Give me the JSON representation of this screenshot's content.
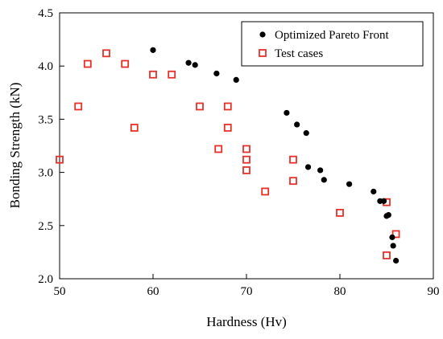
{
  "chart_data": {
    "type": "scatter",
    "xlabel": "Hardness (Hv)",
    "ylabel": "Bonding Strength (kN)",
    "xlim": [
      50,
      90
    ],
    "ylim": [
      2.0,
      4.5
    ],
    "x_ticks": [
      50,
      60,
      70,
      80,
      90
    ],
    "y_ticks": [
      2.0,
      2.5,
      3.0,
      3.5,
      4.0,
      4.5
    ],
    "x_tick_labels": [
      "50",
      "60",
      "70",
      "80",
      "90"
    ],
    "y_tick_labels": [
      "2.0",
      "2.5",
      "3.0",
      "3.5",
      "4.0",
      "4.5"
    ],
    "grid": false,
    "legend_position": "top-right",
    "series": [
      {
        "name": "Optimized Pareto Front",
        "marker": "filled-circle",
        "color": "#000000",
        "points": [
          [
            60.0,
            4.15
          ],
          [
            63.8,
            4.03
          ],
          [
            64.5,
            4.01
          ],
          [
            66.8,
            3.93
          ],
          [
            68.9,
            3.87
          ],
          [
            74.3,
            3.56
          ],
          [
            75.4,
            3.45
          ],
          [
            76.4,
            3.37
          ],
          [
            76.6,
            3.05
          ],
          [
            77.9,
            3.02
          ],
          [
            78.3,
            2.93
          ],
          [
            81.0,
            2.89
          ],
          [
            83.6,
            2.82
          ],
          [
            84.3,
            2.73
          ],
          [
            84.7,
            2.73
          ],
          [
            85.0,
            2.59
          ],
          [
            85.2,
            2.6
          ],
          [
            85.6,
            2.39
          ],
          [
            85.7,
            2.31
          ],
          [
            86.0,
            2.17
          ]
        ]
      },
      {
        "name": "Test cases",
        "marker": "open-square",
        "color": "#e8302a",
        "points": [
          [
            50.0,
            3.12
          ],
          [
            52.0,
            3.62
          ],
          [
            53.0,
            4.02
          ],
          [
            55.0,
            4.12
          ],
          [
            57.0,
            4.02
          ],
          [
            58.0,
            3.42
          ],
          [
            60.0,
            3.92
          ],
          [
            62.0,
            3.92
          ],
          [
            65.0,
            3.62
          ],
          [
            67.0,
            3.22
          ],
          [
            68.0,
            3.62
          ],
          [
            68.0,
            3.42
          ],
          [
            70.0,
            3.22
          ],
          [
            70.0,
            3.12
          ],
          [
            70.0,
            3.02
          ],
          [
            72.0,
            2.82
          ],
          [
            75.0,
            3.12
          ],
          [
            75.0,
            2.92
          ],
          [
            80.0,
            2.62
          ],
          [
            85.0,
            2.72
          ],
          [
            85.0,
            2.22
          ],
          [
            86.0,
            2.42
          ]
        ]
      }
    ]
  }
}
